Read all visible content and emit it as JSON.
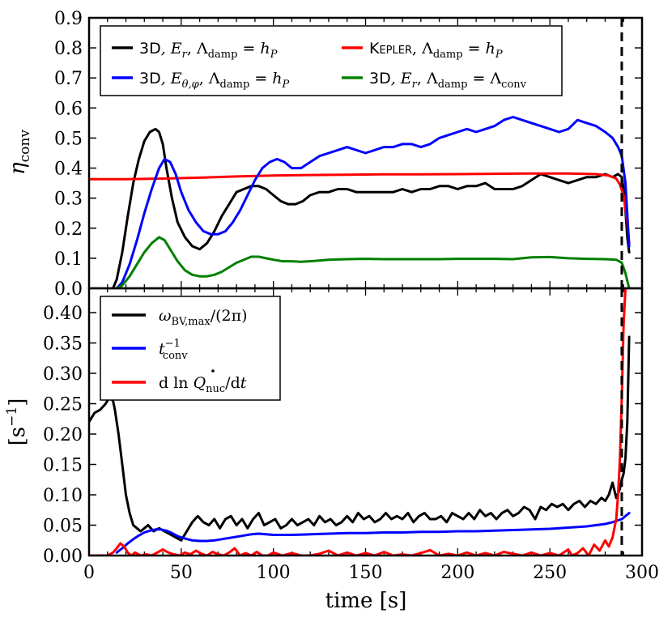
{
  "chart_data": [
    {
      "type": "line",
      "panel": "top",
      "ylabel": "η_conv",
      "ylabel_main": "η",
      "ylabel_sub": "conv",
      "xlim": [
        0,
        300
      ],
      "ylim": [
        0,
        0.9
      ],
      "yticks": [
        0.0,
        0.1,
        0.2,
        0.3,
        0.4,
        0.5,
        0.6,
        0.7,
        0.8,
        0.9
      ],
      "ytick_labels": [
        "0.0",
        "0.1",
        "0.2",
        "0.3",
        "0.4",
        "0.5",
        "0.6",
        "0.7",
        "0.8",
        "0.9"
      ],
      "vline_x": 289,
      "legend": [
        {
          "name": "3D, E_r, Λ_damp = h_P",
          "color": "#000000",
          "parts": [
            "3D",
            ", E",
            "r",
            ", Λ",
            "damp",
            " = h",
            "P"
          ]
        },
        {
          "name": "Kepler, Λ_damp = h_P",
          "color": "#ff0000",
          "parts": [
            "Kepler",
            ", Λ",
            "damp",
            " = h",
            "P"
          ]
        },
        {
          "name": "3D, E_θ,φ, Λ_damp = h_P",
          "color": "#0000ff",
          "parts": [
            "3D",
            ", E",
            "θ,φ",
            ", Λ",
            "damp",
            " = h",
            "P"
          ]
        },
        {
          "name": "3D, E_r, Λ_damp = Λ_conv",
          "color": "#008000",
          "parts": [
            "3D",
            ", E",
            "r",
            ", Λ",
            "damp",
            " = Λ",
            "conv"
          ]
        }
      ],
      "series": [
        {
          "name": "3D, E_r, Λ_damp = h_P",
          "color": "#000000",
          "x": [
            13,
            15,
            18,
            21,
            24,
            27,
            30,
            33,
            36,
            38,
            40,
            42,
            45,
            48,
            52,
            56,
            60,
            64,
            68,
            72,
            76,
            80,
            84,
            88,
            92,
            96,
            100,
            104,
            108,
            112,
            116,
            120,
            125,
            130,
            135,
            140,
            145,
            150,
            155,
            160,
            165,
            170,
            175,
            180,
            185,
            190,
            195,
            200,
            205,
            210,
            215,
            220,
            225,
            230,
            235,
            240,
            245,
            250,
            255,
            260,
            265,
            270,
            275,
            280,
            284,
            287,
            289,
            290,
            291,
            292,
            293
          ],
          "y": [
            0.0,
            0.03,
            0.12,
            0.24,
            0.35,
            0.43,
            0.49,
            0.52,
            0.53,
            0.52,
            0.48,
            0.4,
            0.3,
            0.22,
            0.17,
            0.14,
            0.13,
            0.15,
            0.19,
            0.24,
            0.28,
            0.32,
            0.33,
            0.34,
            0.34,
            0.33,
            0.31,
            0.29,
            0.28,
            0.28,
            0.29,
            0.31,
            0.32,
            0.32,
            0.33,
            0.33,
            0.32,
            0.32,
            0.32,
            0.32,
            0.32,
            0.33,
            0.32,
            0.33,
            0.33,
            0.34,
            0.34,
            0.33,
            0.34,
            0.34,
            0.35,
            0.33,
            0.33,
            0.33,
            0.34,
            0.36,
            0.38,
            0.37,
            0.36,
            0.35,
            0.36,
            0.37,
            0.37,
            0.38,
            0.37,
            0.38,
            0.37,
            0.33,
            0.26,
            0.17,
            0.12
          ]
        },
        {
          "name": "Kepler, Λ_damp = h_P",
          "color": "#ff0000",
          "x": [
            0,
            20,
            40,
            60,
            80,
            100,
            120,
            140,
            160,
            180,
            200,
            220,
            240,
            260,
            275,
            282,
            286,
            288,
            290,
            292,
            293
          ],
          "y": [
            0.363,
            0.363,
            0.365,
            0.368,
            0.372,
            0.375,
            0.377,
            0.378,
            0.379,
            0.379,
            0.38,
            0.381,
            0.382,
            0.382,
            0.38,
            0.375,
            0.365,
            0.345,
            0.31,
            0.22,
            0.15
          ]
        },
        {
          "name": "3D, E_θ,φ, Λ_damp = h_P",
          "color": "#0000ff",
          "x": [
            15,
            18,
            22,
            26,
            30,
            34,
            38,
            41,
            44,
            47,
            50,
            54,
            58,
            62,
            66,
            70,
            74,
            78,
            82,
            86,
            90,
            94,
            98,
            102,
            106,
            110,
            115,
            120,
            125,
            130,
            135,
            140,
            145,
            150,
            155,
            160,
            165,
            170,
            175,
            180,
            185,
            190,
            195,
            200,
            205,
            210,
            215,
            220,
            225,
            230,
            235,
            240,
            245,
            250,
            255,
            260,
            265,
            270,
            275,
            280,
            284,
            287,
            289,
            291,
            293
          ],
          "y": [
            0.0,
            0.02,
            0.08,
            0.16,
            0.25,
            0.33,
            0.4,
            0.43,
            0.42,
            0.38,
            0.32,
            0.26,
            0.22,
            0.19,
            0.18,
            0.18,
            0.19,
            0.22,
            0.26,
            0.31,
            0.36,
            0.4,
            0.42,
            0.43,
            0.42,
            0.4,
            0.4,
            0.42,
            0.44,
            0.45,
            0.46,
            0.47,
            0.46,
            0.45,
            0.46,
            0.47,
            0.47,
            0.48,
            0.48,
            0.47,
            0.48,
            0.5,
            0.51,
            0.52,
            0.53,
            0.52,
            0.53,
            0.54,
            0.56,
            0.57,
            0.56,
            0.55,
            0.54,
            0.53,
            0.52,
            0.53,
            0.56,
            0.55,
            0.54,
            0.52,
            0.5,
            0.47,
            0.44,
            0.35,
            0.14
          ]
        },
        {
          "name": "3D, E_r, Λ_damp = Λ_conv",
          "color": "#008000",
          "x": [
            15,
            18,
            22,
            26,
            30,
            34,
            38,
            41,
            44,
            48,
            52,
            56,
            60,
            64,
            68,
            72,
            76,
            80,
            84,
            88,
            92,
            96,
            100,
            105,
            110,
            115,
            120,
            130,
            140,
            150,
            160,
            170,
            180,
            190,
            200,
            210,
            220,
            230,
            240,
            250,
            260,
            270,
            280,
            286,
            289,
            291,
            293
          ],
          "y": [
            0.0,
            0.01,
            0.04,
            0.08,
            0.12,
            0.15,
            0.17,
            0.16,
            0.13,
            0.09,
            0.06,
            0.045,
            0.04,
            0.04,
            0.045,
            0.055,
            0.07,
            0.085,
            0.095,
            0.105,
            0.105,
            0.1,
            0.095,
            0.09,
            0.09,
            0.088,
            0.09,
            0.095,
            0.097,
            0.098,
            0.097,
            0.097,
            0.097,
            0.097,
            0.098,
            0.098,
            0.098,
            0.097,
            0.103,
            0.104,
            0.1,
            0.098,
            0.097,
            0.095,
            0.085,
            0.05,
            0.0
          ]
        }
      ]
    },
    {
      "type": "line",
      "panel": "bottom",
      "xlabel": "time [s]",
      "ylabel": "[s^-1]",
      "ylabel_main": "[s",
      "ylabel_sup": "−1",
      "ylabel_close": "]",
      "xlim": [
        0,
        300
      ],
      "ylim": [
        0,
        0.44
      ],
      "xticks": [
        0,
        50,
        100,
        150,
        200,
        250,
        300
      ],
      "xtick_labels": [
        "0",
        "50",
        "100",
        "150",
        "200",
        "250",
        "300"
      ],
      "yticks": [
        0.0,
        0.05,
        0.1,
        0.15,
        0.2,
        0.25,
        0.3,
        0.35,
        0.4
      ],
      "ytick_labels": [
        "0.00",
        "0.05",
        "0.10",
        "0.15",
        "0.20",
        "0.25",
        "0.30",
        "0.35",
        "0.40"
      ],
      "vline_x": 289,
      "legend": [
        {
          "name": "ω_BV,max/(2π)",
          "color": "#000000",
          "parts": [
            "ω",
            "BV,max",
            "/(2π)"
          ]
        },
        {
          "name": "t_conv^-1",
          "color": "#0000ff",
          "parts": [
            "t",
            "−1",
            "conv"
          ]
        },
        {
          "name": "d ln Q̇_nuc/dt",
          "color": "#ff0000",
          "parts": [
            "d ln ",
            "Q",
            "nuc",
            "/d",
            "t"
          ]
        }
      ],
      "series": [
        {
          "name": "ω_BV,max/(2π)",
          "color": "#000000",
          "x": [
            0,
            3,
            6,
            9,
            11,
            13,
            14,
            16,
            18,
            20,
            22,
            24,
            26,
            28,
            30,
            32,
            35,
            38,
            41,
            44,
            47,
            50,
            53,
            56,
            59,
            62,
            65,
            68,
            71,
            74,
            77,
            80,
            83,
            86,
            89,
            92,
            95,
            98,
            101,
            104,
            107,
            110,
            113,
            116,
            119,
            122,
            125,
            128,
            131,
            134,
            137,
            140,
            143,
            146,
            149,
            152,
            155,
            158,
            161,
            164,
            167,
            170,
            173,
            176,
            179,
            182,
            185,
            188,
            191,
            194,
            197,
            200,
            203,
            206,
            209,
            212,
            215,
            218,
            221,
            224,
            227,
            230,
            233,
            236,
            239,
            242,
            245,
            248,
            251,
            254,
            257,
            260,
            263,
            266,
            269,
            272,
            275,
            278,
            280,
            282,
            284,
            286,
            288,
            289,
            290,
            291,
            292,
            293
          ],
          "y": [
            0.22,
            0.235,
            0.24,
            0.25,
            0.26,
            0.255,
            0.24,
            0.2,
            0.15,
            0.1,
            0.07,
            0.05,
            0.045,
            0.04,
            0.045,
            0.05,
            0.04,
            0.045,
            0.04,
            0.035,
            0.03,
            0.025,
            0.04,
            0.055,
            0.065,
            0.055,
            0.05,
            0.06,
            0.045,
            0.06,
            0.065,
            0.05,
            0.06,
            0.045,
            0.06,
            0.07,
            0.05,
            0.055,
            0.06,
            0.045,
            0.05,
            0.06,
            0.05,
            0.055,
            0.06,
            0.05,
            0.065,
            0.055,
            0.06,
            0.05,
            0.055,
            0.065,
            0.055,
            0.07,
            0.06,
            0.065,
            0.055,
            0.06,
            0.07,
            0.06,
            0.065,
            0.06,
            0.07,
            0.055,
            0.065,
            0.07,
            0.06,
            0.06,
            0.065,
            0.055,
            0.07,
            0.065,
            0.06,
            0.07,
            0.06,
            0.075,
            0.065,
            0.07,
            0.06,
            0.07,
            0.075,
            0.065,
            0.07,
            0.08,
            0.075,
            0.06,
            0.08,
            0.075,
            0.085,
            0.08,
            0.085,
            0.075,
            0.085,
            0.09,
            0.08,
            0.09,
            0.085,
            0.095,
            0.09,
            0.1,
            0.12,
            0.095,
            0.11,
            0.125,
            0.135,
            0.16,
            0.22,
            0.36
          ]
        },
        {
          "name": "t_conv^-1",
          "color": "#0000ff",
          "x": [
            15,
            18,
            21,
            24,
            27,
            30,
            33,
            36,
            39,
            42,
            45,
            48,
            52,
            56,
            60,
            64,
            68,
            72,
            76,
            80,
            84,
            88,
            92,
            96,
            100,
            110,
            120,
            130,
            140,
            150,
            160,
            170,
            180,
            190,
            200,
            210,
            220,
            230,
            240,
            250,
            260,
            270,
            275,
            280,
            284,
            287,
            289,
            291,
            293
          ],
          "y": [
            0.005,
            0.012,
            0.02,
            0.027,
            0.033,
            0.038,
            0.041,
            0.043,
            0.043,
            0.041,
            0.037,
            0.032,
            0.028,
            0.025,
            0.024,
            0.024,
            0.025,
            0.027,
            0.029,
            0.031,
            0.033,
            0.035,
            0.036,
            0.035,
            0.034,
            0.034,
            0.035,
            0.036,
            0.037,
            0.037,
            0.038,
            0.038,
            0.039,
            0.039,
            0.04,
            0.04,
            0.041,
            0.042,
            0.043,
            0.044,
            0.046,
            0.048,
            0.05,
            0.052,
            0.055,
            0.058,
            0.06,
            0.065,
            0.07
          ]
        },
        {
          "name": "d ln Q̇_nuc/dt",
          "color": "#ff0000",
          "x": [
            0,
            5,
            10,
            13,
            15,
            17,
            19,
            21,
            23,
            25,
            28,
            31,
            34,
            37,
            40,
            43,
            46,
            49,
            52,
            55,
            58,
            61,
            64,
            67,
            70,
            73,
            76,
            79,
            82,
            85,
            88,
            91,
            94,
            97,
            100,
            105,
            110,
            115,
            120,
            125,
            130,
            135,
            140,
            145,
            150,
            155,
            160,
            165,
            170,
            175,
            180,
            185,
            190,
            195,
            200,
            205,
            210,
            215,
            220,
            225,
            230,
            235,
            240,
            245,
            250,
            255,
            260,
            262,
            265,
            268,
            271,
            274,
            277,
            280,
            282,
            284,
            286,
            287,
            288,
            289,
            290,
            291
          ],
          "y": [
            0.0,
            0.0,
            0.0,
            0.005,
            0.012,
            0.02,
            0.015,
            0.005,
            0.0,
            0.005,
            0.0,
            0.002,
            0.0,
            0.005,
            0.01,
            0.005,
            0.002,
            0.0,
            0.005,
            0.002,
            0.008,
            0.003,
            0.0,
            0.006,
            0.002,
            0.0,
            0.005,
            0.012,
            0.0,
            0.004,
            0.0,
            0.006,
            0.0,
            0.0,
            0.005,
            0.0,
            0.004,
            0.0,
            0.0,
            0.003,
            0.008,
            0.0,
            0.005,
            0.0,
            0.004,
            0.0,
            0.006,
            0.0,
            0.002,
            0.0,
            0.004,
            0.009,
            0.0,
            0.003,
            0.0,
            0.005,
            0.0,
            0.004,
            0.0,
            0.006,
            0.003,
            0.0,
            0.005,
            0.0,
            0.004,
            0.0,
            0.01,
            0.0,
            0.004,
            0.012,
            0.0,
            0.018,
            0.008,
            0.025,
            0.015,
            0.03,
            0.06,
            0.1,
            0.16,
            0.26,
            0.38,
            0.44
          ]
        }
      ]
    }
  ]
}
